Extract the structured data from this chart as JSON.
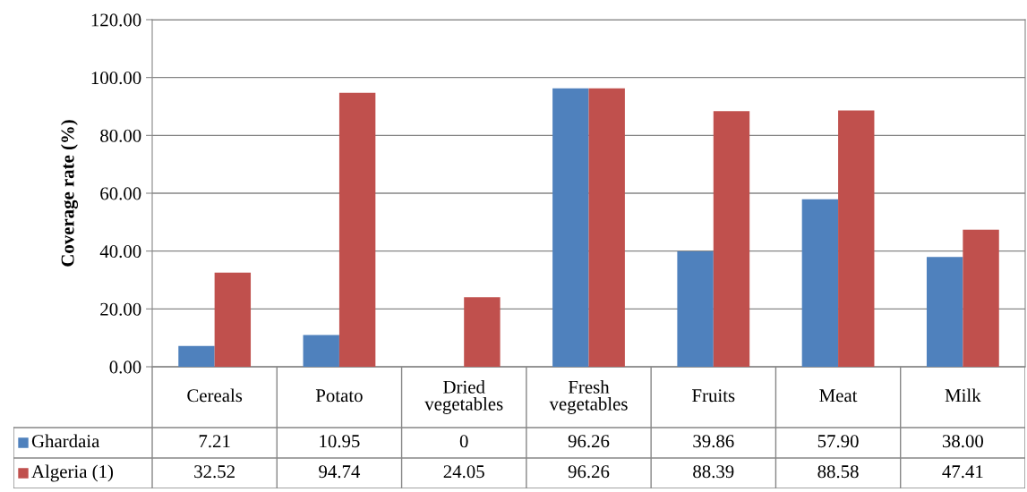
{
  "chart_data": {
    "type": "bar",
    "ylabel": "Coverage rate (%)",
    "categories": [
      "Cereals",
      "Potato",
      "Dried vegetables",
      "Fresh vegetables",
      "Fruits",
      "Meat",
      "Milk"
    ],
    "series": [
      {
        "name": "Ghardaia",
        "color": "#4f81bd",
        "values": [
          7.21,
          10.95,
          0,
          96.26,
          39.86,
          57.9,
          38.0
        ],
        "value_labels": [
          "7.21",
          "10.95",
          "0",
          "96.26",
          "39.86",
          "57.90",
          "38.00"
        ]
      },
      {
        "name": "Algeria (1)",
        "color": "#c0504d",
        "values": [
          32.52,
          94.74,
          24.05,
          96.26,
          88.39,
          88.58,
          47.41
        ],
        "value_labels": [
          "32.52",
          "94.74",
          "24.05",
          "96.26",
          "88.39",
          "88.58",
          "47.41"
        ]
      }
    ],
    "ylim": [
      0,
      120
    ],
    "yticks": [
      {
        "value": 0,
        "label": "0.00"
      },
      {
        "value": 20,
        "label": "20.00"
      },
      {
        "value": 40,
        "label": "40.00"
      },
      {
        "value": 60,
        "label": "60.00"
      },
      {
        "value": 80,
        "label": "80.00"
      },
      {
        "value": 100,
        "label": "100.00"
      },
      {
        "value": 120,
        "label": "120.00"
      }
    ],
    "grid": "y",
    "legend": "bottom"
  }
}
